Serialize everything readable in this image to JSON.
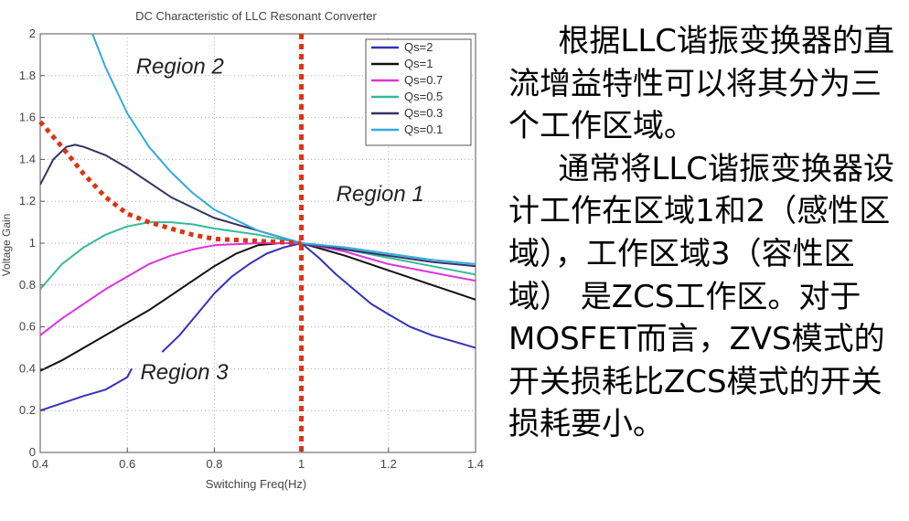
{
  "chart_data": {
    "type": "line",
    "title": "DC Characteristic of LLC Resonant Converter",
    "xlabel": "Switching Freq(Hz)",
    "ylabel": "Voltage Gain",
    "xlim": [
      0.4,
      1.4
    ],
    "ylim": [
      0,
      2
    ],
    "xticks": [
      0.4,
      0.6,
      0.8,
      1,
      1.2,
      1.4
    ],
    "xtick_labels": [
      "0.4",
      "0.6",
      "0.8",
      "1",
      "1.2",
      "1.4"
    ],
    "yticks": [
      0,
      0.2,
      0.4,
      0.6,
      0.8,
      1,
      1.2,
      1.4,
      1.6,
      1.8,
      2
    ],
    "ytick_labels": [
      "0",
      "0.2",
      "0.4",
      "0.6",
      "0.8",
      "1",
      "1.2",
      "1.4",
      "1.6",
      "1.8",
      "2"
    ],
    "grid": "dotted",
    "legend": "top-right",
    "series": [
      {
        "name": "Qs=2",
        "color": "#3333bb",
        "segments": [
          [
            [
              0.4,
              0.2
            ],
            [
              0.45,
              0.235
            ],
            [
              0.5,
              0.27
            ],
            [
              0.55,
              0.3
            ],
            [
              0.6,
              0.36
            ],
            [
              0.61,
              0.4
            ]
          ],
          [
            [
              0.68,
              0.48
            ],
            [
              0.72,
              0.56
            ],
            [
              0.76,
              0.66
            ],
            [
              0.8,
              0.76
            ],
            [
              0.84,
              0.84
            ],
            [
              0.88,
              0.9
            ],
            [
              0.92,
              0.95
            ],
            [
              0.96,
              0.98
            ],
            [
              1.0,
              1.0
            ],
            [
              1.04,
              0.93
            ],
            [
              1.08,
              0.85
            ],
            [
              1.12,
              0.78
            ],
            [
              1.16,
              0.71
            ],
            [
              1.2,
              0.66
            ],
            [
              1.25,
              0.6
            ],
            [
              1.3,
              0.56
            ],
            [
              1.35,
              0.53
            ],
            [
              1.4,
              0.5
            ]
          ]
        ]
      },
      {
        "name": "Qs=1",
        "color": "#111111",
        "segments": [
          [
            [
              0.4,
              0.39
            ],
            [
              0.45,
              0.44
            ],
            [
              0.5,
              0.5
            ],
            [
              0.55,
              0.56
            ],
            [
              0.6,
              0.62
            ],
            [
              0.65,
              0.68
            ],
            [
              0.7,
              0.75
            ],
            [
              0.75,
              0.82
            ],
            [
              0.8,
              0.89
            ],
            [
              0.85,
              0.95
            ],
            [
              0.9,
              0.99
            ],
            [
              0.95,
              1.0
            ],
            [
              1.0,
              1.0
            ],
            [
              1.1,
              0.94
            ],
            [
              1.2,
              0.87
            ],
            [
              1.3,
              0.8
            ],
            [
              1.4,
              0.73
            ]
          ]
        ]
      },
      {
        "name": "Qs=0.7",
        "color": "#dd33dd",
        "segments": [
          [
            [
              0.4,
              0.56
            ],
            [
              0.45,
              0.64
            ],
            [
              0.5,
              0.71
            ],
            [
              0.55,
              0.78
            ],
            [
              0.6,
              0.84
            ],
            [
              0.65,
              0.9
            ],
            [
              0.7,
              0.94
            ],
            [
              0.75,
              0.97
            ],
            [
              0.8,
              0.99
            ],
            [
              0.9,
              1.0
            ],
            [
              1.0,
              1.0
            ],
            [
              1.1,
              0.96
            ],
            [
              1.2,
              0.9
            ],
            [
              1.3,
              0.86
            ],
            [
              1.4,
              0.82
            ]
          ]
        ]
      },
      {
        "name": "Qs=0.5",
        "color": "#33bb99",
        "segments": [
          [
            [
              0.4,
              0.78
            ],
            [
              0.45,
              0.9
            ],
            [
              0.5,
              0.98
            ],
            [
              0.55,
              1.04
            ],
            [
              0.6,
              1.08
            ],
            [
              0.65,
              1.1
            ],
            [
              0.7,
              1.1
            ],
            [
              0.75,
              1.09
            ],
            [
              0.8,
              1.07
            ],
            [
              0.9,
              1.04
            ],
            [
              1.0,
              1.0
            ],
            [
              1.1,
              0.97
            ],
            [
              1.2,
              0.93
            ],
            [
              1.3,
              0.89
            ],
            [
              1.4,
              0.85
            ]
          ]
        ]
      },
      {
        "name": "Qs=0.3",
        "color": "#333366",
        "segments": [
          [
            [
              0.4,
              1.28
            ],
            [
              0.43,
              1.4
            ],
            [
              0.46,
              1.46
            ],
            [
              0.48,
              1.47
            ],
            [
              0.5,
              1.46
            ],
            [
              0.55,
              1.42
            ],
            [
              0.6,
              1.36
            ],
            [
              0.65,
              1.29
            ],
            [
              0.7,
              1.22
            ],
            [
              0.75,
              1.17
            ],
            [
              0.8,
              1.12
            ],
            [
              0.9,
              1.06
            ],
            [
              1.0,
              1.0
            ],
            [
              1.1,
              0.97
            ],
            [
              1.2,
              0.94
            ],
            [
              1.3,
              0.91
            ],
            [
              1.4,
              0.89
            ]
          ]
        ]
      },
      {
        "name": "Qs=0.1",
        "color": "#33aadd",
        "segments": [
          [
            [
              0.52,
              2.0
            ],
            [
              0.55,
              1.84
            ],
            [
              0.6,
              1.62
            ],
            [
              0.65,
              1.46
            ],
            [
              0.7,
              1.34
            ],
            [
              0.75,
              1.24
            ],
            [
              0.8,
              1.16
            ],
            [
              0.85,
              1.11
            ],
            [
              0.9,
              1.06
            ],
            [
              0.95,
              1.03
            ],
            [
              1.0,
              1.0
            ],
            [
              1.1,
              0.98
            ],
            [
              1.2,
              0.95
            ],
            [
              1.3,
              0.92
            ],
            [
              1.4,
              0.9
            ]
          ]
        ]
      }
    ],
    "boundary": {
      "color": "#dd3311",
      "vertical_x": 1.0,
      "peak_curve": [
        [
          0.4,
          1.58
        ],
        [
          0.45,
          1.46
        ],
        [
          0.5,
          1.33
        ],
        [
          0.55,
          1.22
        ],
        [
          0.6,
          1.14
        ],
        [
          0.65,
          1.1
        ],
        [
          0.7,
          1.07
        ],
        [
          0.75,
          1.04
        ],
        [
          0.8,
          1.02
        ],
        [
          0.9,
          1.01
        ],
        [
          1.0,
          1.0
        ]
      ]
    },
    "annotations": [
      {
        "text": "Region 2",
        "x": 0.62,
        "y": 1.81
      },
      {
        "text": "Region 1",
        "x": 1.08,
        "y": 1.2
      },
      {
        "text": "Region 3",
        "x": 0.63,
        "y": 0.35
      }
    ]
  },
  "description": {
    "paragraphs": [
      "根据LLC谐振变换器的直流增益特性可以将其分为三个工作区域。",
      "通常将LLC谐振变换器设计工作在区域1和2（感性区域），工作区域3（容性区域） 是ZCS工作区。对于MOSFET而言，ZVS模式的开关损耗比ZCS模式的开关损耗要小。"
    ]
  }
}
